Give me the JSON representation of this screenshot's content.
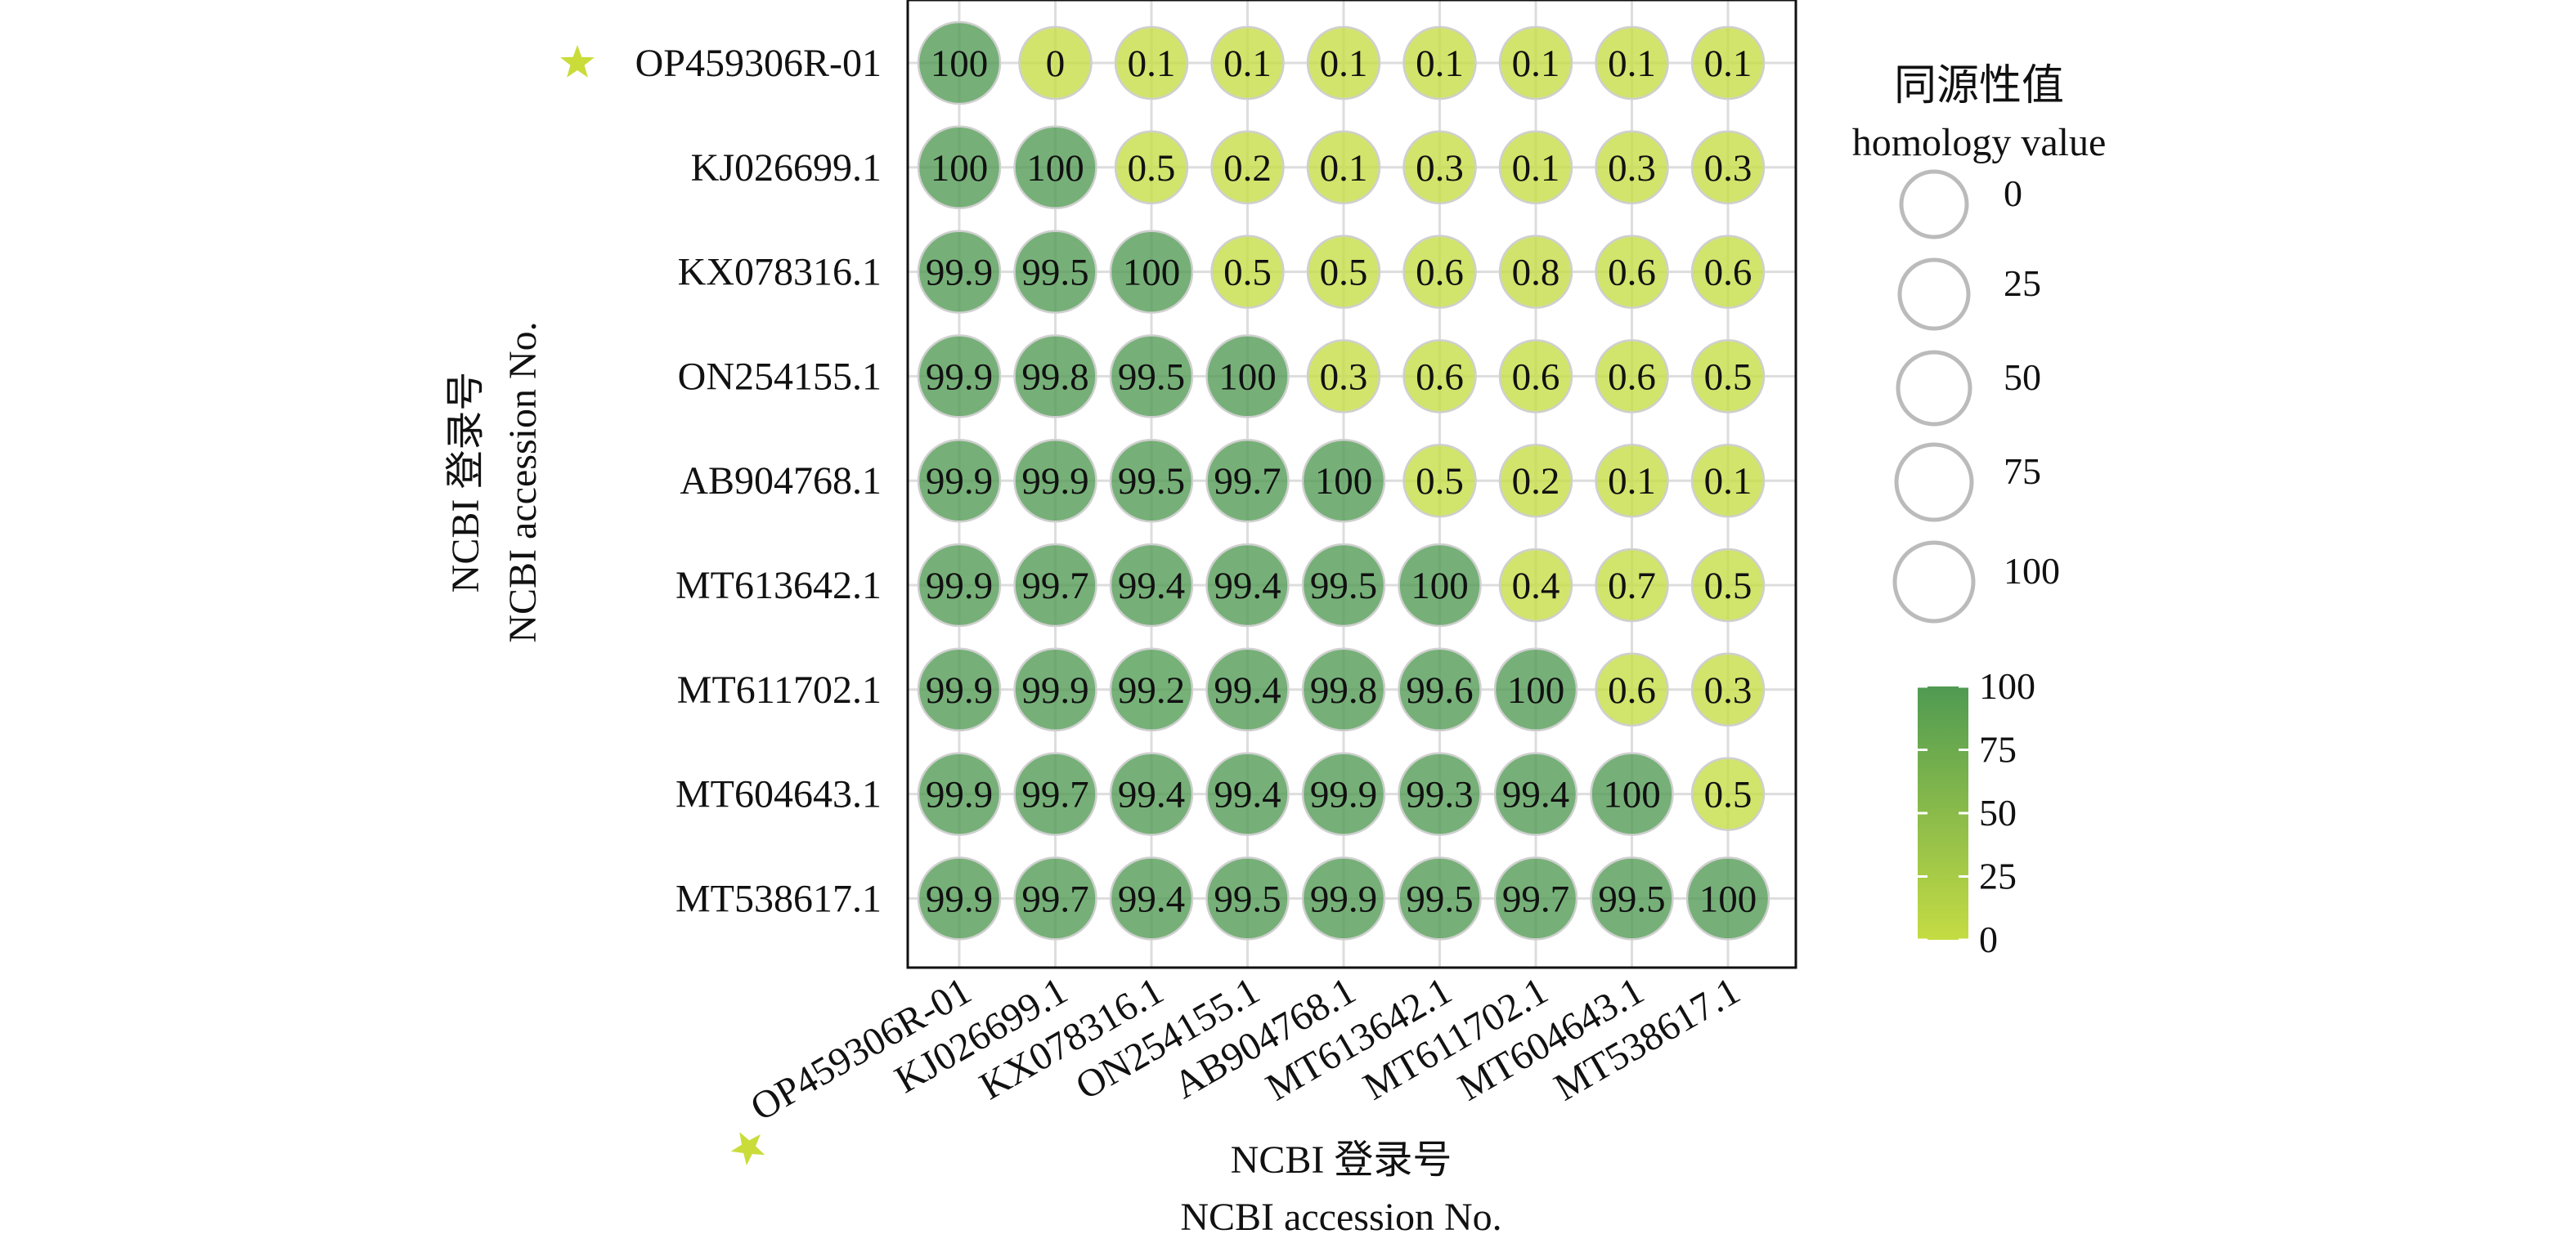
{
  "chart_data": {
    "type": "bubble-matrix",
    "xlabel": "NCBI 登录号",
    "xlabel_en": "NCBI accession No.",
    "ylabel": "NCBI 登录号",
    "ylabel_en": "NCBI accession No.",
    "categories": [
      "OP459306R-01",
      "KJ026699.1",
      "KX078316.1",
      "ON254155.1",
      "AB904768.1",
      "MT613642.1",
      "MT611702.1",
      "MT604643.1",
      "MT538617.1"
    ],
    "highlight": "OP459306R-01",
    "values": [
      [
        100,
        0,
        0.1,
        0.1,
        0.1,
        0.1,
        0.1,
        0.1,
        0.1
      ],
      [
        100,
        100,
        0.5,
        0.2,
        0.1,
        0.3,
        0.1,
        0.3,
        0.3
      ],
      [
        99.9,
        99.5,
        100,
        0.5,
        0.5,
        0.6,
        0.8,
        0.6,
        0.6
      ],
      [
        99.9,
        99.8,
        99.5,
        100,
        0.3,
        0.6,
        0.6,
        0.6,
        0.5
      ],
      [
        99.9,
        99.9,
        99.5,
        99.7,
        100,
        0.5,
        0.2,
        0.1,
        0.1
      ],
      [
        99.9,
        99.7,
        99.4,
        99.4,
        99.5,
        100,
        0.4,
        0.7,
        0.5
      ],
      [
        99.9,
        99.9,
        99.2,
        99.4,
        99.8,
        99.6,
        100,
        0.6,
        0.3
      ],
      [
        99.9,
        99.7,
        99.4,
        99.4,
        99.9,
        99.3,
        99.4,
        100,
        0.5
      ],
      [
        99.9,
        99.7,
        99.4,
        99.5,
        99.9,
        99.5,
        99.7,
        99.5,
        100
      ]
    ],
    "legend_size_title": "同源性值",
    "legend_size_title_en": "homology value",
    "legend_size_values": [
      0,
      25,
      50,
      75,
      100
    ],
    "colorbar_ticks": [
      100,
      75,
      50,
      25,
      0
    ],
    "color_low": "#c5dc43",
    "color_high": "#4f9a52",
    "highlight_color": "#6bb34a",
    "star_color": "#c9dc3a"
  }
}
